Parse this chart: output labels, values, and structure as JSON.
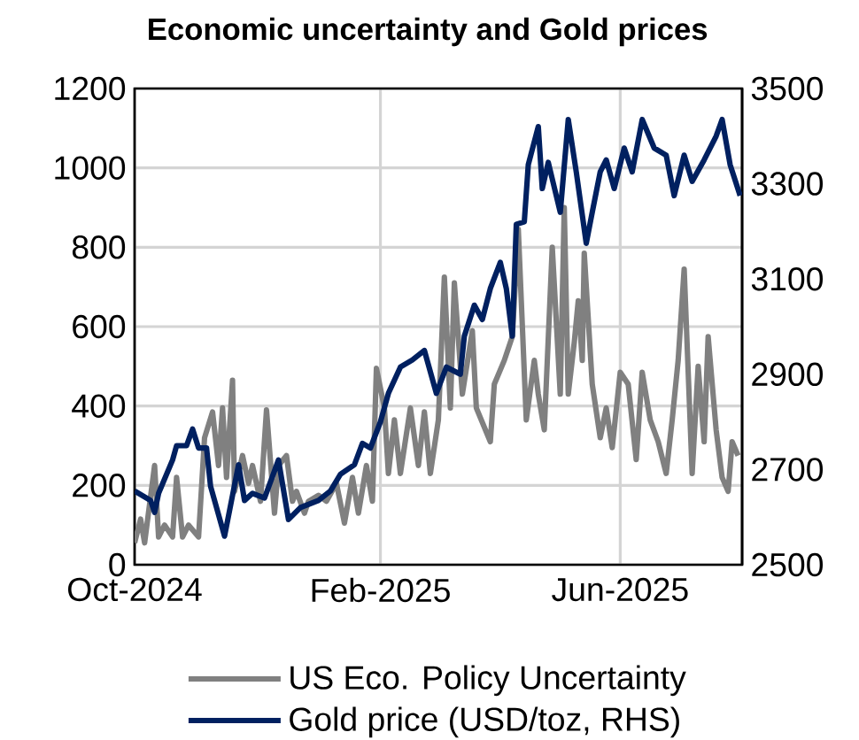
{
  "chart_data": {
    "type": "line",
    "title": "Economic uncertainty and Gold prices",
    "xlim": [
      "2024-10-01",
      "2025-08-01"
    ],
    "xticks": [
      {
        "value": "2024-10-01",
        "label": "Oct-2024"
      },
      {
        "value": "2025-02-01",
        "label": "Feb-2025"
      },
      {
        "value": "2025-06-01",
        "label": "Jun-2025"
      }
    ],
    "ylim": [
      0,
      1200
    ],
    "yticks": [
      0,
      200,
      400,
      600,
      800,
      1000,
      1200
    ],
    "y2lim": [
      2500,
      3500
    ],
    "y2ticks": [
      2500,
      2700,
      2900,
      3100,
      3300,
      3500
    ],
    "grid": true,
    "legend": "bottom",
    "series": [
      {
        "name": "US Eco. Policy Uncertainty",
        "color": "#808080",
        "axis": "y",
        "x": [
          "2024-10-01",
          "2024-10-04",
          "2024-10-06",
          "2024-10-11",
          "2024-10-13",
          "2024-10-16",
          "2024-10-20",
          "2024-10-22",
          "2024-10-25",
          "2024-10-28",
          "2024-11-02",
          "2024-11-05",
          "2024-11-09",
          "2024-11-12",
          "2024-11-14",
          "2024-11-16",
          "2024-11-19",
          "2024-11-20",
          "2024-11-24",
          "2024-11-27",
          "2024-11-29",
          "2024-12-03",
          "2024-12-06",
          "2024-12-10",
          "2024-12-12",
          "2024-12-16",
          "2024-12-19",
          "2024-12-21",
          "2024-12-25",
          "2024-12-27",
          "2025-01-01",
          "2025-01-05",
          "2025-01-10",
          "2025-01-14",
          "2025-01-18",
          "2025-01-21",
          "2025-01-25",
          "2025-01-28",
          "2025-01-30",
          "2025-02-03",
          "2025-02-05",
          "2025-02-08",
          "2025-02-11",
          "2025-02-16",
          "2025-02-20",
          "2025-02-23",
          "2025-02-26",
          "2025-03-02",
          "2025-03-05",
          "2025-03-08",
          "2025-03-10",
          "2025-03-14",
          "2025-03-19",
          "2025-03-21",
          "2025-03-28",
          "2025-03-30",
          "2025-04-04",
          "2025-04-08",
          "2025-04-11",
          "2025-04-15",
          "2025-04-19",
          "2025-04-21",
          "2025-04-24",
          "2025-04-28",
          "2025-05-02",
          "2025-05-04",
          "2025-05-06",
          "2025-05-09",
          "2025-05-11",
          "2025-05-13",
          "2025-05-14",
          "2025-05-18",
          "2025-05-22",
          "2025-05-25",
          "2025-05-28",
          "2025-06-01",
          "2025-06-05",
          "2025-06-09",
          "2025-06-12",
          "2025-06-16",
          "2025-06-20",
          "2025-06-24",
          "2025-06-27",
          "2025-06-30",
          "2025-07-03",
          "2025-07-07",
          "2025-07-10",
          "2025-07-13",
          "2025-07-15",
          "2025-07-19",
          "2025-07-22",
          "2025-07-25",
          "2025-07-27",
          "2025-07-30"
        ],
        "values": [
          55,
          115,
          55,
          250,
          70,
          100,
          70,
          220,
          70,
          100,
          70,
          320,
          385,
          250,
          395,
          220,
          465,
          185,
          275,
          205,
          250,
          160,
          390,
          130,
          250,
          275,
          160,
          185,
          130,
          160,
          175,
          160,
          205,
          105,
          220,
          130,
          250,
          160,
          495,
          395,
          230,
          365,
          230,
          395,
          250,
          385,
          230,
          365,
          725,
          395,
          710,
          430,
          590,
          395,
          310,
          455,
          515,
          575,
          845,
          365,
          515,
          430,
          340,
          800,
          430,
          900,
          430,
          560,
          665,
          515,
          785,
          455,
          320,
          395,
          295,
          485,
          455,
          265,
          485,
          365,
          310,
          230,
          365,
          515,
          745,
          230,
          500,
          310,
          575,
          340,
          220,
          185,
          310,
          275
        ]
      },
      {
        "name": "Gold price (USD/toz, RHS)",
        "color": "#002060",
        "axis": "y2",
        "x": [
          "2024-10-01",
          "2024-10-09",
          "2024-10-11",
          "2024-10-13",
          "2024-10-20",
          "2024-10-22",
          "2024-10-27",
          "2024-10-30",
          "2024-11-02",
          "2024-11-06",
          "2024-11-08",
          "2024-11-15",
          "2024-11-22",
          "2024-11-25",
          "2024-11-29",
          "2024-12-05",
          "2024-12-12",
          "2024-12-17",
          "2024-12-23",
          "2025-01-01",
          "2025-01-07",
          "2025-01-12",
          "2025-01-19",
          "2025-01-23",
          "2025-01-27",
          "2025-02-01",
          "2025-02-05",
          "2025-02-11",
          "2025-02-17",
          "2025-02-23",
          "2025-03-01",
          "2025-03-06",
          "2025-03-13",
          "2025-03-15",
          "2025-03-20",
          "2025-03-24",
          "2025-03-28",
          "2025-04-02",
          "2025-04-05",
          "2025-04-08",
          "2025-04-10",
          "2025-04-14",
          "2025-04-16",
          "2025-04-21",
          "2025-04-23",
          "2025-04-26",
          "2025-05-02",
          "2025-05-06",
          "2025-05-10",
          "2025-05-15",
          "2025-05-18",
          "2025-05-22",
          "2025-05-25",
          "2025-05-29",
          "2025-06-03",
          "2025-06-07",
          "2025-06-12",
          "2025-06-18",
          "2025-06-24",
          "2025-06-28",
          "2025-07-03",
          "2025-07-07",
          "2025-07-13",
          "2025-07-19",
          "2025-07-22",
          "2025-07-26",
          "2025-07-31"
        ],
        "values": [
          2655,
          2635,
          2610,
          2650,
          2720,
          2750,
          2750,
          2785,
          2745,
          2745,
          2665,
          2560,
          2710,
          2635,
          2650,
          2640,
          2720,
          2595,
          2620,
          2635,
          2655,
          2690,
          2710,
          2755,
          2745,
          2800,
          2860,
          2915,
          2930,
          2950,
          2860,
          2915,
          2900,
          2980,
          3045,
          3015,
          3080,
          3135,
          3080,
          2980,
          3215,
          3220,
          3340,
          3420,
          3290,
          3345,
          3240,
          3435,
          3325,
          3175,
          3240,
          3325,
          3350,
          3290,
          3375,
          3325,
          3435,
          3375,
          3360,
          3275,
          3360,
          3305,
          3350,
          3400,
          3435,
          3340,
          3275
        ]
      }
    ]
  }
}
